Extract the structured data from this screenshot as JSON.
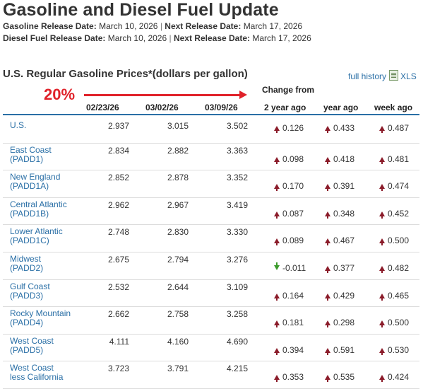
{
  "page": {
    "title": "Gasoline and Diesel Fuel Update",
    "gasoline_release": {
      "label": "Gasoline Release Date:",
      "date": "March 10, 2026",
      "next_label": "Next Release Date:",
      "next_date": "March 17, 2026"
    },
    "diesel_release": {
      "label": "Diesel Fuel Release Date:",
      "date": "March 10, 2026",
      "next_label": "Next Release Date:",
      "next_date": "March 17, 2026"
    },
    "separator": "|"
  },
  "table": {
    "title": "U.S. Regular Gasoline Prices*(dollars per gallon)",
    "full_history": "full history",
    "xls": "XLS",
    "annotation": "20%",
    "annotation_color": "#e0222a",
    "change_from": "Change from",
    "headers": [
      "02/23/26",
      "03/02/26",
      "03/09/26",
      "2 year ago",
      "year ago",
      "week ago"
    ],
    "rows": [
      {
        "region": [
          "U.S."
        ],
        "prices": [
          "2.937",
          "3.015",
          "3.502"
        ],
        "changes": [
          {
            "dir": "up",
            "val": "0.126"
          },
          {
            "dir": "up",
            "val": "0.433"
          },
          {
            "dir": "up",
            "val": "0.487"
          }
        ]
      },
      {
        "region": [
          "East Coast",
          "(PADD1)"
        ],
        "prices": [
          "2.834",
          "2.882",
          "3.363"
        ],
        "changes": [
          {
            "dir": "up",
            "val": "0.098"
          },
          {
            "dir": "up",
            "val": "0.418"
          },
          {
            "dir": "up",
            "val": "0.481"
          }
        ]
      },
      {
        "region": [
          "New England",
          "(PADD1A)"
        ],
        "prices": [
          "2.852",
          "2.878",
          "3.352"
        ],
        "changes": [
          {
            "dir": "up",
            "val": "0.170"
          },
          {
            "dir": "up",
            "val": "0.391"
          },
          {
            "dir": "up",
            "val": "0.474"
          }
        ]
      },
      {
        "region": [
          "Central Atlantic",
          "(PADD1B)"
        ],
        "prices": [
          "2.962",
          "2.967",
          "3.419"
        ],
        "changes": [
          {
            "dir": "up",
            "val": "0.087"
          },
          {
            "dir": "up",
            "val": "0.348"
          },
          {
            "dir": "up",
            "val": "0.452"
          }
        ]
      },
      {
        "region": [
          "Lower Atlantic",
          "(PADD1C)"
        ],
        "prices": [
          "2.748",
          "2.830",
          "3.330"
        ],
        "changes": [
          {
            "dir": "up",
            "val": "0.089"
          },
          {
            "dir": "up",
            "val": "0.467"
          },
          {
            "dir": "up",
            "val": "0.500"
          }
        ]
      },
      {
        "region": [
          "Midwest",
          "(PADD2)"
        ],
        "prices": [
          "2.675",
          "2.794",
          "3.276"
        ],
        "changes": [
          {
            "dir": "down",
            "val": "-0.011"
          },
          {
            "dir": "up",
            "val": "0.377"
          },
          {
            "dir": "up",
            "val": "0.482"
          }
        ]
      },
      {
        "region": [
          "Gulf Coast",
          "(PADD3)"
        ],
        "prices": [
          "2.532",
          "2.644",
          "3.109"
        ],
        "changes": [
          {
            "dir": "up",
            "val": "0.164"
          },
          {
            "dir": "up",
            "val": "0.429"
          },
          {
            "dir": "up",
            "val": "0.465"
          }
        ]
      },
      {
        "region": [
          "Rocky Mountain",
          "(PADD4)"
        ],
        "prices": [
          "2.662",
          "2.758",
          "3.258"
        ],
        "changes": [
          {
            "dir": "up",
            "val": "0.181"
          },
          {
            "dir": "up",
            "val": "0.298"
          },
          {
            "dir": "up",
            "val": "0.500"
          }
        ]
      },
      {
        "region": [
          "West Coast",
          "(PADD5)"
        ],
        "prices": [
          "4.111",
          "4.160",
          "4.690"
        ],
        "changes": [
          {
            "dir": "up",
            "val": "0.394"
          },
          {
            "dir": "up",
            "val": "0.591"
          },
          {
            "dir": "up",
            "val": "0.530"
          }
        ]
      },
      {
        "region": [
          "West Coast",
          "less California"
        ],
        "prices": [
          "3.723",
          "3.791",
          "4.215"
        ],
        "changes": [
          {
            "dir": "up",
            "val": "0.353"
          },
          {
            "dir": "up",
            "val": "0.535"
          },
          {
            "dir": "up",
            "val": "0.424"
          }
        ]
      }
    ],
    "colors": {
      "up_arrow": "#8b1c2a",
      "down_arrow": "#3a9a2a",
      "link": "#2a6fa6",
      "rule": "#2a6fa6"
    }
  }
}
